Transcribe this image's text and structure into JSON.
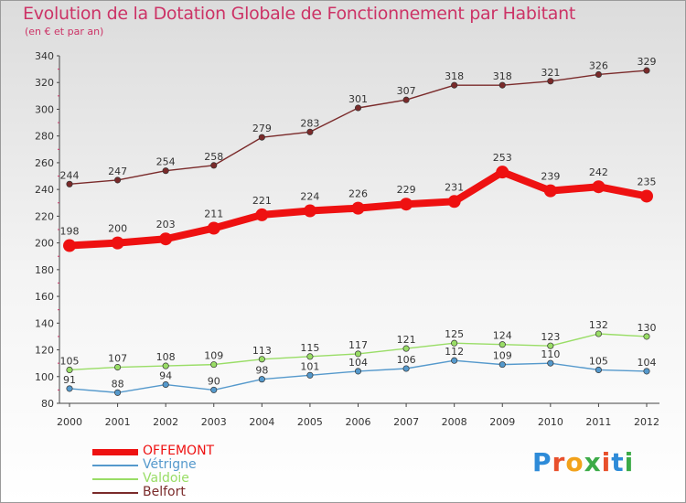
{
  "header": {
    "title": "Evolution de la Dotation Globale de Fonctionnement par Habitant",
    "subtitle": "(en € et par an)"
  },
  "logo": {
    "text": "Proxiti",
    "colors": [
      "#2e8bd8",
      "#e8502c",
      "#f2a21b",
      "#3cab48",
      "#e8502c",
      "#2e8bd8",
      "#3cab48"
    ]
  },
  "chart_data": {
    "type": "line",
    "x": [
      2000,
      2001,
      2002,
      2003,
      2004,
      2005,
      2006,
      2007,
      2008,
      2009,
      2010,
      2011,
      2012
    ],
    "ylim": [
      80,
      340
    ],
    "yticks": [
      80,
      100,
      120,
      140,
      160,
      180,
      200,
      220,
      240,
      260,
      280,
      300,
      320,
      340
    ],
    "grid": false,
    "legend_position": "bottom-left",
    "series": [
      {
        "name": "OFFEMONT",
        "color": "#ee1111",
        "emphasis": true,
        "values": [
          198,
          200,
          203,
          211,
          221,
          224,
          226,
          229,
          231,
          253,
          239,
          242,
          235
        ]
      },
      {
        "name": "Vétrigne",
        "color": "#5599cc",
        "emphasis": false,
        "values": [
          91,
          88,
          94,
          90,
          98,
          101,
          104,
          106,
          112,
          109,
          110,
          105,
          104
        ]
      },
      {
        "name": "Valdoie",
        "color": "#99dd66",
        "emphasis": false,
        "values": [
          105,
          107,
          108,
          109,
          113,
          115,
          117,
          121,
          125,
          124,
          123,
          132,
          130
        ]
      },
      {
        "name": "Belfort",
        "color": "#7a2a2a",
        "emphasis": false,
        "values": [
          244,
          247,
          254,
          258,
          279,
          283,
          301,
          307,
          318,
          318,
          321,
          326,
          329
        ]
      }
    ]
  }
}
